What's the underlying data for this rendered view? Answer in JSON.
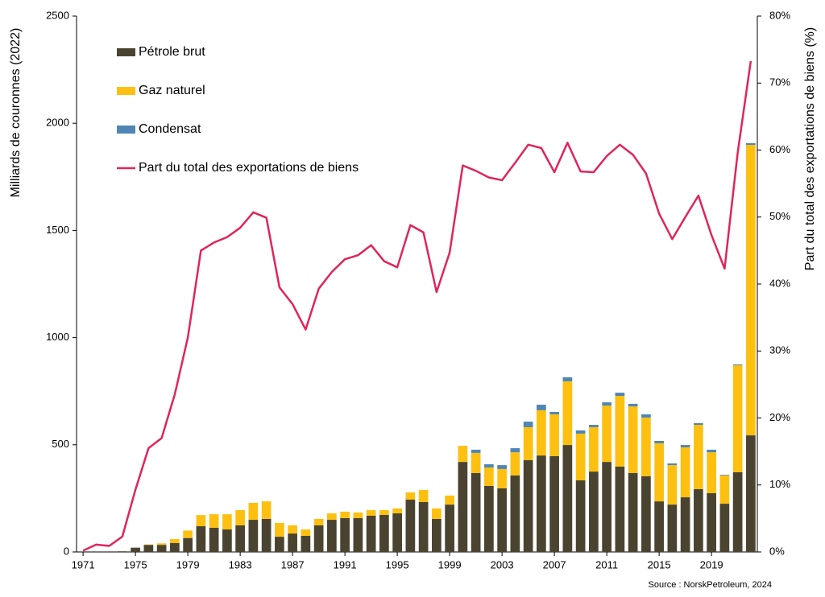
{
  "chart_data": {
    "type": "bar-line",
    "ylabel": "Milliards de couronnes (2022)",
    "y2label": "Part du total des exportations de biens (%)",
    "source": "Source : NorskPetroleum, 2024",
    "x": [
      1971,
      1972,
      1973,
      1974,
      1975,
      1976,
      1977,
      1978,
      1979,
      1980,
      1981,
      1982,
      1983,
      1984,
      1985,
      1986,
      1987,
      1988,
      1989,
      1990,
      1991,
      1992,
      1993,
      1994,
      1995,
      1996,
      1997,
      1998,
      1999,
      2000,
      2001,
      2002,
      2003,
      2004,
      2005,
      2006,
      2007,
      2008,
      2009,
      2010,
      2011,
      2012,
      2013,
      2014,
      2015,
      2016,
      2017,
      2018,
      2019,
      2020,
      2021,
      2022
    ],
    "xlim": [
      1970.5,
      2022.5
    ],
    "xticks": [
      1971,
      1975,
      1979,
      1983,
      1987,
      1991,
      1995,
      1999,
      2003,
      2007,
      2011,
      2015,
      2019
    ],
    "ylim": [
      0,
      2500
    ],
    "yticks": [
      0,
      500,
      1000,
      1500,
      2000,
      2500
    ],
    "y2lim": [
      0,
      80
    ],
    "y2ticks": [
      {
        "value": 0,
        "label": "0%"
      },
      {
        "value": 10,
        "label": "10%"
      },
      {
        "value": 20,
        "label": "20%"
      },
      {
        "value": 30,
        "label": "30%"
      },
      {
        "value": 40,
        "label": "40%"
      },
      {
        "value": 50,
        "label": "50%"
      },
      {
        "value": 60,
        "label": "60%"
      },
      {
        "value": 70,
        "label": "70%"
      },
      {
        "value": 80,
        "label": "80%"
      }
    ],
    "legend": "upper left",
    "series": [
      {
        "name": "Pétrole brut",
        "type": "bar",
        "color": "#4a4330",
        "values": [
          0,
          0,
          0,
          3,
          20,
          33,
          33,
          42,
          65,
          120,
          113,
          105,
          124,
          150,
          154,
          71,
          86,
          75,
          124,
          150,
          158,
          158,
          169,
          173,
          180,
          244,
          233,
          154,
          221,
          420,
          368,
          308,
          297,
          357,
          428,
          450,
          447,
          499,
          334,
          375,
          420,
          398,
          368,
          353,
          236,
          221,
          255,
          293,
          274,
          225,
          372,
          544
        ]
      },
      {
        "name": "Gaz naturel",
        "type": "bar",
        "color": "#fdc010",
        "values": [
          0,
          0,
          0,
          0,
          0,
          2,
          7,
          18,
          35,
          52,
          63,
          71,
          71,
          79,
          82,
          64,
          38,
          30,
          30,
          30,
          30,
          26,
          26,
          22,
          23,
          34,
          56,
          49,
          42,
          75,
          94,
          86,
          90,
          108,
          154,
          211,
          195,
          297,
          218,
          207,
          263,
          330,
          311,
          274,
          271,
          184,
          233,
          300,
          191,
          132,
          499,
          1355
        ]
      },
      {
        "name": "Condensat",
        "type": "bar",
        "color": "#4f86b4",
        "values": [
          0,
          0,
          0,
          0,
          0,
          0,
          0,
          0,
          0,
          0,
          0,
          0,
          0,
          0,
          0,
          0,
          0,
          0,
          0,
          0,
          0,
          0,
          0,
          0,
          0,
          0,
          0,
          0,
          0,
          0,
          15,
          15,
          18,
          19,
          26,
          26,
          11,
          19,
          15,
          11,
          15,
          15,
          12,
          15,
          11,
          8,
          11,
          8,
          12,
          3,
          4,
          8
        ]
      },
      {
        "name": "Part du total des exportations de biens",
        "type": "line",
        "axis": "y2",
        "color": "#e0245c",
        "values": [
          0.2,
          1.1,
          0.9,
          2.3,
          9.3,
          15.5,
          17,
          23.5,
          32,
          45,
          46.2,
          47,
          48.4,
          50.7,
          49.9,
          39.5,
          37,
          33.2,
          39.3,
          41.8,
          43.7,
          44.3,
          45.8,
          43.4,
          42.5,
          48.8,
          47.7,
          38.8,
          44.7,
          57.7,
          56.9,
          55.9,
          55.5,
          58.1,
          60.8,
          60.3,
          56.7,
          61.1,
          56.8,
          56.7,
          59.1,
          60.8,
          59.3,
          56.5,
          50.5,
          46.7,
          50,
          53.2,
          47.3,
          42.3,
          59.6,
          73.3
        ]
      }
    ]
  }
}
